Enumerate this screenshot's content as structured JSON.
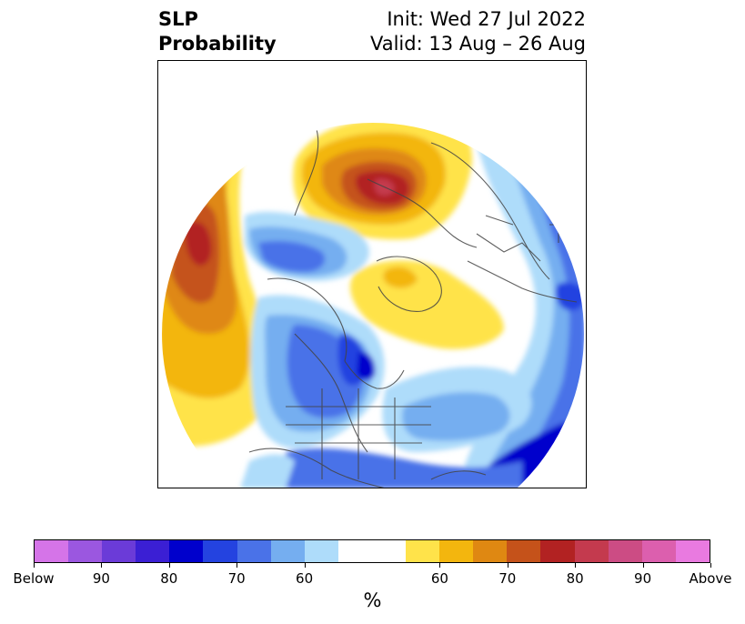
{
  "title": {
    "variable": "SLP",
    "product": "Probability",
    "init": "Init: Wed 27 Jul 2022",
    "valid": "Valid: 13 Aug – 26 Aug"
  },
  "map": {
    "projection": "north-polar-stereographic",
    "field": "sea level pressure tercile probability"
  },
  "colorbar": {
    "label": "%",
    "colors": [
      "#d574e8",
      "#9b57e0",
      "#6b3bd8",
      "#3b1fd4",
      "#0000cc",
      "#2443e0",
      "#4a72e8",
      "#75aef0",
      "#aedcfa",
      "#ffffff",
      "#ffffff",
      "#ffe34a",
      "#f3b60e",
      "#df8812",
      "#c5521a",
      "#b22222",
      "#c43a4e",
      "#cc4c84",
      "#dc5fae",
      "#e97ae0"
    ],
    "ticks": [
      "Below",
      "90",
      "80",
      "70",
      "60",
      "60",
      "70",
      "80",
      "90",
      "Above"
    ]
  }
}
